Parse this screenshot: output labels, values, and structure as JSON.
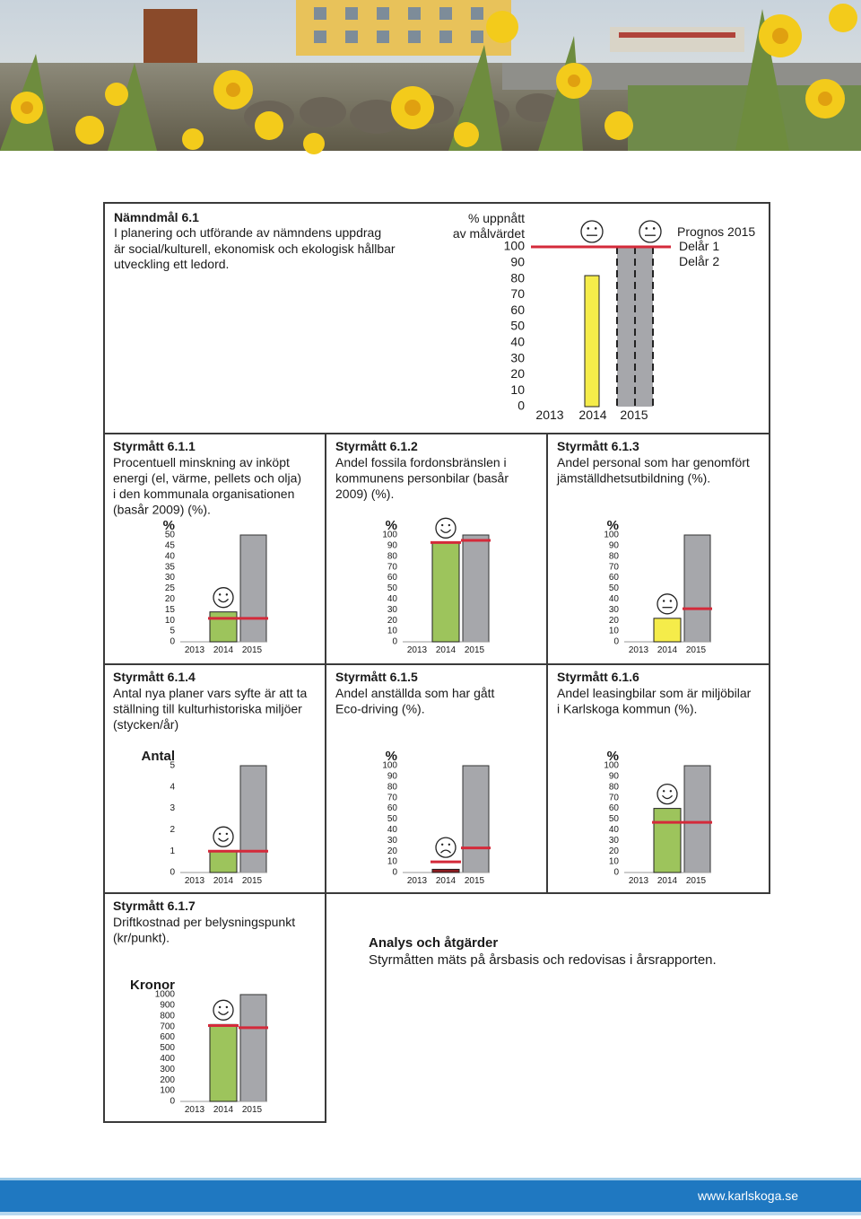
{
  "goal": {
    "title": "Nämndmål 6.1",
    "lines": [
      "I planering och utförande av nämndens uppdrag",
      "är social/kulturell, ekonomisk och ekologisk hållbar",
      "utveckling ett ledord."
    ],
    "chart": {
      "type": "bar",
      "axis_label": [
        "% uppnått",
        "av målvärdet"
      ],
      "categories": [
        "2013",
        "2014",
        "2015"
      ],
      "values": [
        null,
        82,
        null
      ],
      "targets": [
        null,
        100,
        100
      ],
      "faces": [
        null,
        "neutral",
        "neutral"
      ],
      "legend": [
        "Prognos 2015",
        "Delår 1",
        "Delår 2"
      ],
      "bar_color": "#f5ec4a",
      "target_color": "#d42a3a",
      "forecast_color": "#a6a7ab",
      "ylim": [
        0,
        100
      ],
      "yticks": [
        0,
        10,
        20,
        30,
        40,
        50,
        60,
        70,
        80,
        90,
        100
      ]
    }
  },
  "measures": [
    {
      "title": "Styrmått 6.1.1",
      "lines": [
        "Procentuell minskning av inköpt",
        "energi (el, värme, pellets och olja)",
        "i den kommunala organisationen",
        "(basår 2009) (%)."
      ],
      "chart": {
        "type": "bar",
        "unit": "%",
        "categories": [
          "2013",
          "2014",
          "2015"
        ],
        "values": [
          null,
          14,
          null
        ],
        "targets": [
          null,
          11,
          11
        ],
        "faces": [
          null,
          "happy",
          null
        ],
        "bar_color": "#9dc45c",
        "target_color": "#d42a3a",
        "forecast_color": "#a6a7ab",
        "ylim": [
          0,
          50
        ],
        "yticks": [
          0,
          5,
          10,
          15,
          20,
          25,
          30,
          35,
          40,
          45,
          50
        ]
      }
    },
    {
      "title": "Styrmått 6.1.2",
      "lines": [
        "Andel fossila fordonsbränslen i",
        "kommunens personbilar (basår",
        "2009) (%)."
      ],
      "chart": {
        "type": "bar",
        "unit": "%",
        "categories": [
          "2013",
          "2014",
          "2015"
        ],
        "values": [
          null,
          93,
          null
        ],
        "targets": [
          null,
          93,
          95
        ],
        "faces": [
          null,
          "happy",
          null
        ],
        "bar_color": "#9dc45c",
        "target_color": "#d42a3a",
        "forecast_color": "#a6a7ab",
        "ylim": [
          0,
          100
        ],
        "yticks": [
          0,
          10,
          20,
          30,
          40,
          50,
          60,
          70,
          80,
          90,
          100
        ]
      }
    },
    {
      "title": "Styrmått 6.1.3",
      "lines": [
        "Andel personal som har genomfört",
        "jämställdhetsutbildning (%)."
      ],
      "chart": {
        "type": "bar",
        "unit": "%",
        "categories": [
          "2013",
          "2014",
          "2015"
        ],
        "values": [
          null,
          22,
          null
        ],
        "targets": [
          null,
          null,
          31
        ],
        "faces": [
          null,
          "neutral",
          null
        ],
        "bar_color": "#f5ec4a",
        "target_color": "#d42a3a",
        "forecast_color": "#a6a7ab",
        "ylim": [
          0,
          100
        ],
        "yticks": [
          0,
          10,
          20,
          30,
          40,
          50,
          60,
          70,
          80,
          90,
          100
        ]
      }
    },
    {
      "title": "Styrmått 6.1.4",
      "lines": [
        "Antal nya planer vars syfte är att ta",
        "ställning till kulturhistoriska miljöer",
        "(stycken/år)"
      ],
      "chart": {
        "type": "bar",
        "unit": "Antal",
        "categories": [
          "2013",
          "2014",
          "2015"
        ],
        "values": [
          null,
          1,
          null
        ],
        "targets": [
          null,
          1,
          1
        ],
        "faces": [
          null,
          "happy",
          null
        ],
        "bar_color": "#9dc45c",
        "target_color": "#d42a3a",
        "forecast_color": "#a6a7ab",
        "ylim": [
          0,
          5
        ],
        "yticks": [
          0,
          1,
          2,
          3,
          4,
          5
        ]
      }
    },
    {
      "title": "Styrmått 6.1.5",
      "lines": [
        "Andel anställda som har gått",
        "Eco-driving (%)."
      ],
      "chart": {
        "type": "bar",
        "unit": "%",
        "categories": [
          "2013",
          "2014",
          "2015"
        ],
        "values": [
          null,
          3,
          null
        ],
        "targets": [
          null,
          10,
          23
        ],
        "faces": [
          null,
          "sad",
          null
        ],
        "bar_color": "#8c1c20",
        "target_color": "#d42a3a",
        "forecast_color": "#a6a7ab",
        "ylim": [
          0,
          100
        ],
        "yticks": [
          0,
          10,
          20,
          30,
          40,
          50,
          60,
          70,
          80,
          90,
          100
        ]
      }
    },
    {
      "title": "Styrmått 6.1.6",
      "lines": [
        "Andel leasingbilar som är miljöbilar",
        "i Karlskoga kommun (%)."
      ],
      "chart": {
        "type": "bar",
        "unit": "%",
        "categories": [
          "2013",
          "2014",
          "2015"
        ],
        "values": [
          null,
          60,
          null
        ],
        "targets": [
          null,
          47,
          47
        ],
        "faces": [
          null,
          "happy",
          null
        ],
        "bar_color": "#9dc45c",
        "target_color": "#d42a3a",
        "forecast_color": "#a6a7ab",
        "ylim": [
          0,
          100
        ],
        "yticks": [
          0,
          10,
          20,
          30,
          40,
          50,
          60,
          70,
          80,
          90,
          100
        ]
      }
    },
    {
      "title": "Styrmått 6.1.7",
      "lines": [
        "Driftkostnad per belysningspunkt",
        "(kr/punkt)."
      ],
      "chart": {
        "type": "bar",
        "unit": "Kronor",
        "categories": [
          "2013",
          "2014",
          "2015"
        ],
        "values": [
          null,
          720,
          null
        ],
        "targets": [
          null,
          710,
          690
        ],
        "faces": [
          null,
          "happy",
          null
        ],
        "bar_color": "#9dc45c",
        "target_color": "#d42a3a",
        "forecast_color": "#a6a7ab",
        "ylim": [
          0,
          1000
        ],
        "yticks": [
          0,
          100,
          200,
          300,
          400,
          500,
          600,
          700,
          800,
          900,
          1000
        ]
      }
    }
  ],
  "analysis": {
    "title": "Analys och åtgärder",
    "text": "Styrmåtten mäts på årsbasis och redovisas i årsrapporten."
  },
  "footer": {
    "url": "www.karlskoga.se"
  }
}
